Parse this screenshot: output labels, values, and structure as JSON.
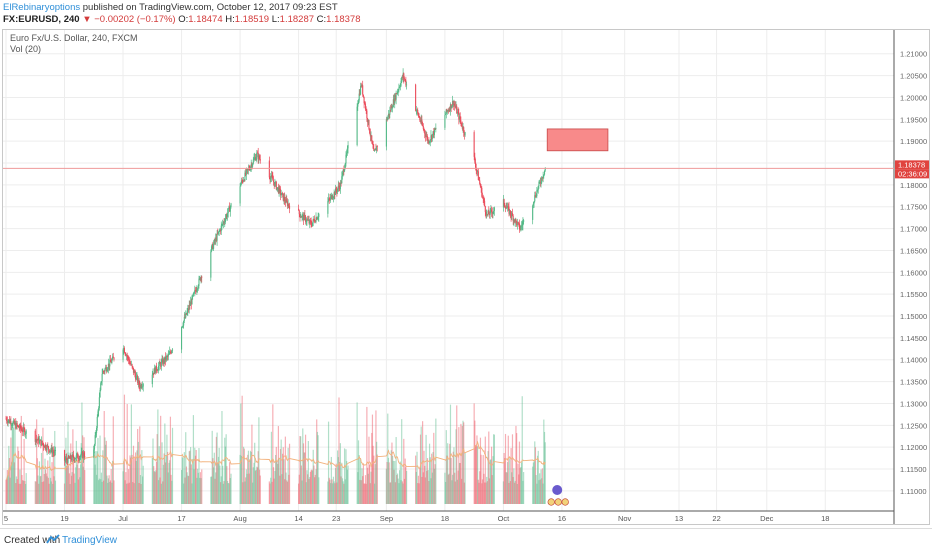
{
  "header": {
    "author": "ElRebinaryoptions",
    "published": " published on TradingView.com, October 12, 2017 09:23 EST",
    "symbol": "FX:EURUSD, 240",
    "change": " ▼ −0.00202 (−0.17%)",
    "o_label": " O:",
    "o_value": "1.18474",
    "h_label": " H:",
    "h_value": "1.18519",
    "l_label": " L:",
    "l_value": "1.18287",
    "c_label": " C:",
    "c_value": "1.18378"
  },
  "legend": {
    "instrument": "Euro Fx/U.S. Dollar, 240, FXCM",
    "volume": "Vol (20)"
  },
  "price_label": "1.18378",
  "countdown_label": "02:36:09",
  "footer": {
    "created_with": "Created with",
    "brand": "TradingView"
  },
  "colors": {
    "up": "#53b987",
    "down": "#eb4d5c",
    "accent": "#2f8fd8",
    "price_line": "#ef9a9a",
    "zone_fill": "#f88a8a",
    "zone_stroke": "#c84a4a",
    "volume_ma": "#f2b27d"
  },
  "icons": [
    "tradingview-logo-icon",
    "event-marker-icon",
    "flag-icon"
  ],
  "chart_data": {
    "type": "candlestick",
    "y_ticks": [
      "1.21000",
      "1.20500",
      "1.20000",
      "1.19500",
      "1.19000",
      "1.18500",
      "1.18000",
      "1.17500",
      "1.17000",
      "1.16500",
      "1.16000",
      "1.15500",
      "1.15000",
      "1.14500",
      "1.14000",
      "1.13500",
      "1.13000",
      "1.12500",
      "1.12000",
      "1.11500",
      "1.11000"
    ],
    "y_range": [
      1.107,
      1.212
    ],
    "x_ticks": [
      "5",
      "19",
      "Jul",
      "17",
      "Aug",
      "14",
      "23",
      "Sep",
      "18",
      "Oct",
      "16",
      "Nov",
      "13",
      "22",
      "Dec",
      "18"
    ],
    "price_anchors": [
      {
        "t": "Jun 5",
        "p": 1.1265
      },
      {
        "t": "Jun 12",
        "p": 1.122
      },
      {
        "t": "Jun 19",
        "p": 1.117
      },
      {
        "t": "Jun 26",
        "p": 1.119
      },
      {
        "t": "Jun 28",
        "p": 1.137
      },
      {
        "t": "Jul 3",
        "p": 1.143
      },
      {
        "t": "Jul 7",
        "p": 1.134
      },
      {
        "t": "Jul 14",
        "p": 1.141
      },
      {
        "t": "Jul 18",
        "p": 1.15
      },
      {
        "t": "Jul 24",
        "p": 1.165
      },
      {
        "t": "Jul 31",
        "p": 1.18
      },
      {
        "t": "Aug 4",
        "p": 1.187
      },
      {
        "t": "Aug 11",
        "p": 1.176
      },
      {
        "t": "Aug 17",
        "p": 1.171
      },
      {
        "t": "Aug 24",
        "p": 1.18
      },
      {
        "t": "Aug 29",
        "p": 1.203
      },
      {
        "t": "Sep 1",
        "p": 1.187
      },
      {
        "t": "Sep 8",
        "p": 1.205
      },
      {
        "t": "Sep 14",
        "p": 1.19
      },
      {
        "t": "Sep 20",
        "p": 1.199
      },
      {
        "t": "Sep 25",
        "p": 1.186
      },
      {
        "t": "Sep 28",
        "p": 1.173
      },
      {
        "t": "Oct 2",
        "p": 1.176
      },
      {
        "t": "Oct 6",
        "p": 1.17
      },
      {
        "t": "Oct 9",
        "p": 1.176
      },
      {
        "t": "Oct 12",
        "p": 1.1838
      }
    ],
    "last_price": 1.18378,
    "resistance_zone": {
      "from": "Oct 12",
      "to": "Oct 27",
      "top": 1.1928,
      "bottom": 1.1878
    },
    "series": [
      {
        "name": "Vol (20)",
        "type": "volume"
      }
    ]
  }
}
